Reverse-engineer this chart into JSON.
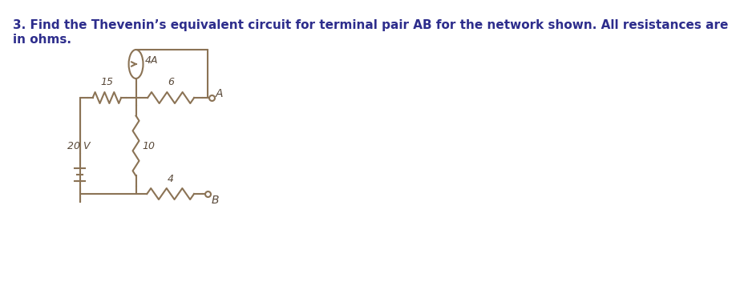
{
  "title_line1": "3. Find the Thevenin’s equivalent circuit for terminal pair AB for the network shown. All resistances are",
  "title_line2": "in ohms.",
  "title_fontsize": 11,
  "title_color": "#2d2d8c",
  "bg_color": "#ffffff",
  "circuit_color": "#8B7355",
  "text_color": "#5a4a3a",
  "R15_label": "15",
  "R6_label": "6",
  "R10_label": "10",
  "R4_label": "4",
  "V20_label": "20 V",
  "I4A_label": "4A",
  "node_A_label": "A",
  "node_B_label": "B"
}
